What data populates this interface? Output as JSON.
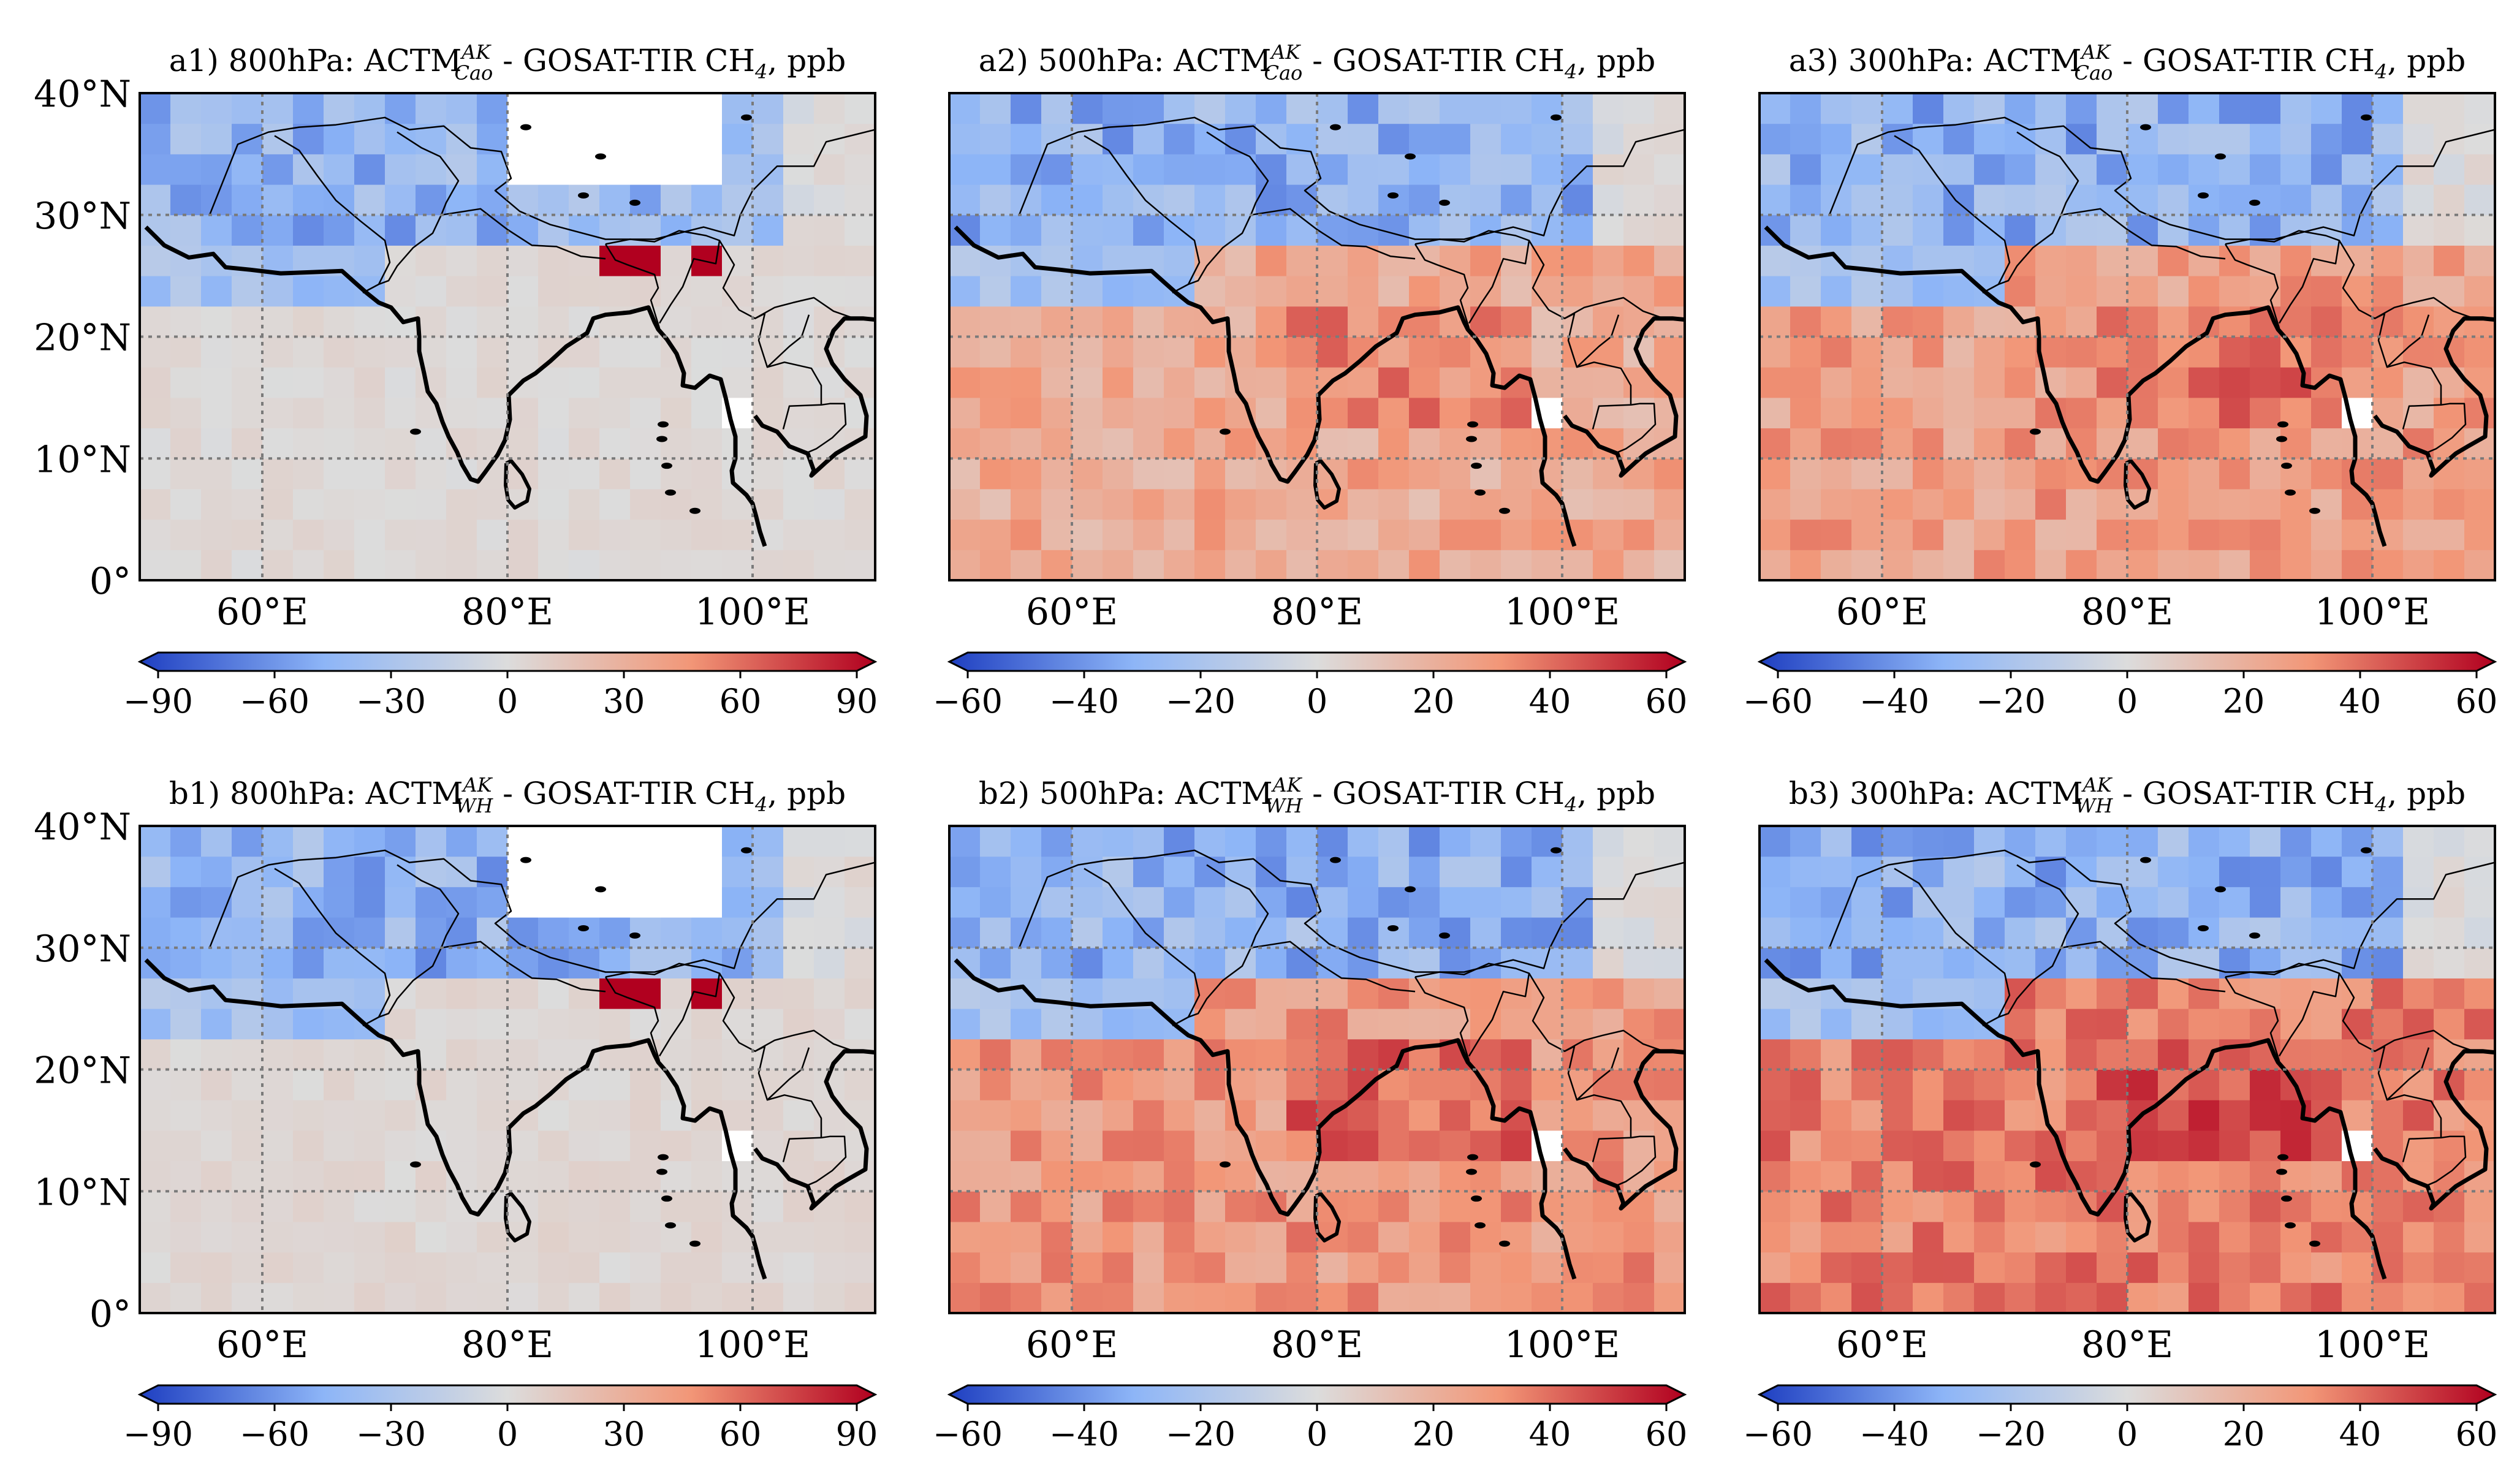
{
  "figure": {
    "axis_labels": {
      "lat": [
        "40°N",
        "30°N",
        "20°N",
        "10°N",
        "0°"
      ],
      "lon": [
        "60°E",
        "80°E",
        "100°E"
      ]
    },
    "colors": {
      "neg_max": "#1f3fc1",
      "neg_mid": "#8db5f7",
      "zero": "#dcdcdc",
      "pos_mid": "#f29677",
      "pos_max": "#b1001f",
      "missing": "#ffffff",
      "grid": "#7a7a7a",
      "coast": "#000000"
    },
    "panels": [
      {
        "id": "a1",
        "title_pre": "a1) 800hPa: ACTM",
        "title_sup": "AK",
        "title_sub": "Cao",
        "title_post": " - GOSAT-TIR CH",
        "title_sub2": "4",
        "title_end": ", ppb",
        "colorbar": {
          "ticks": [
            "−90",
            "−60",
            "−30",
            "0",
            "30",
            "60",
            "90"
          ],
          "range": [
            -90,
            90
          ]
        },
        "base_anomaly_ppb": 3
      },
      {
        "id": "a2",
        "title_pre": "a2) 500hPa: ACTM",
        "title_sup": "AK",
        "title_sub": "Cao",
        "title_post": " - GOSAT-TIR CH",
        "title_sub2": "4",
        "title_end": ", ppb",
        "colorbar": {
          "ticks": [
            "−60",
            "−40",
            "−20",
            "0",
            "20",
            "40",
            "60"
          ],
          "range": [
            -60,
            60
          ]
        },
        "base_anomaly_ppb": 22
      },
      {
        "id": "a3",
        "title_pre": "a3) 300hPa: ACTM",
        "title_sup": "AK",
        "title_sub": "Cao",
        "title_post": " - GOSAT-TIR CH",
        "title_sub2": "4",
        "title_end": ", ppb",
        "colorbar": {
          "ticks": [
            "−60",
            "−40",
            "−20",
            "0",
            "20",
            "40",
            "60"
          ],
          "range": [
            -60,
            60
          ]
        },
        "base_anomaly_ppb": 26
      },
      {
        "id": "b1",
        "title_pre": "b1) 800hPa: ACTM",
        "title_sup": "AK",
        "title_sub": "WH",
        "title_post": " - GOSAT-TIR CH",
        "title_sub2": "4",
        "title_end": ", ppb",
        "colorbar": {
          "ticks": [
            "−90",
            "−60",
            "−30",
            "0",
            "30",
            "60",
            "90"
          ],
          "range": [
            -90,
            90
          ]
        },
        "base_anomaly_ppb": 4
      },
      {
        "id": "b2",
        "title_pre": "b2) 500hPa: ACTM",
        "title_sup": "AK",
        "title_sub": "WH",
        "title_post": " - GOSAT-TIR CH",
        "title_sub2": "4",
        "title_end": ", ppb",
        "colorbar": {
          "ticks": [
            "−60",
            "−40",
            "−20",
            "0",
            "20",
            "40",
            "60"
          ],
          "range": [
            -60,
            60
          ]
        },
        "base_anomaly_ppb": 28
      },
      {
        "id": "b3",
        "title_pre": "b3) 300hPa: ACTM",
        "title_sup": "AK",
        "title_sub": "WH",
        "title_post": " - GOSAT-TIR CH",
        "title_sub2": "4",
        "title_end": ", ppb",
        "colorbar": {
          "ticks": [
            "−60",
            "−40",
            "−20",
            "0",
            "20",
            "40",
            "60"
          ],
          "range": [
            -60,
            60
          ]
        },
        "base_anomaly_ppb": 34
      }
    ]
  }
}
